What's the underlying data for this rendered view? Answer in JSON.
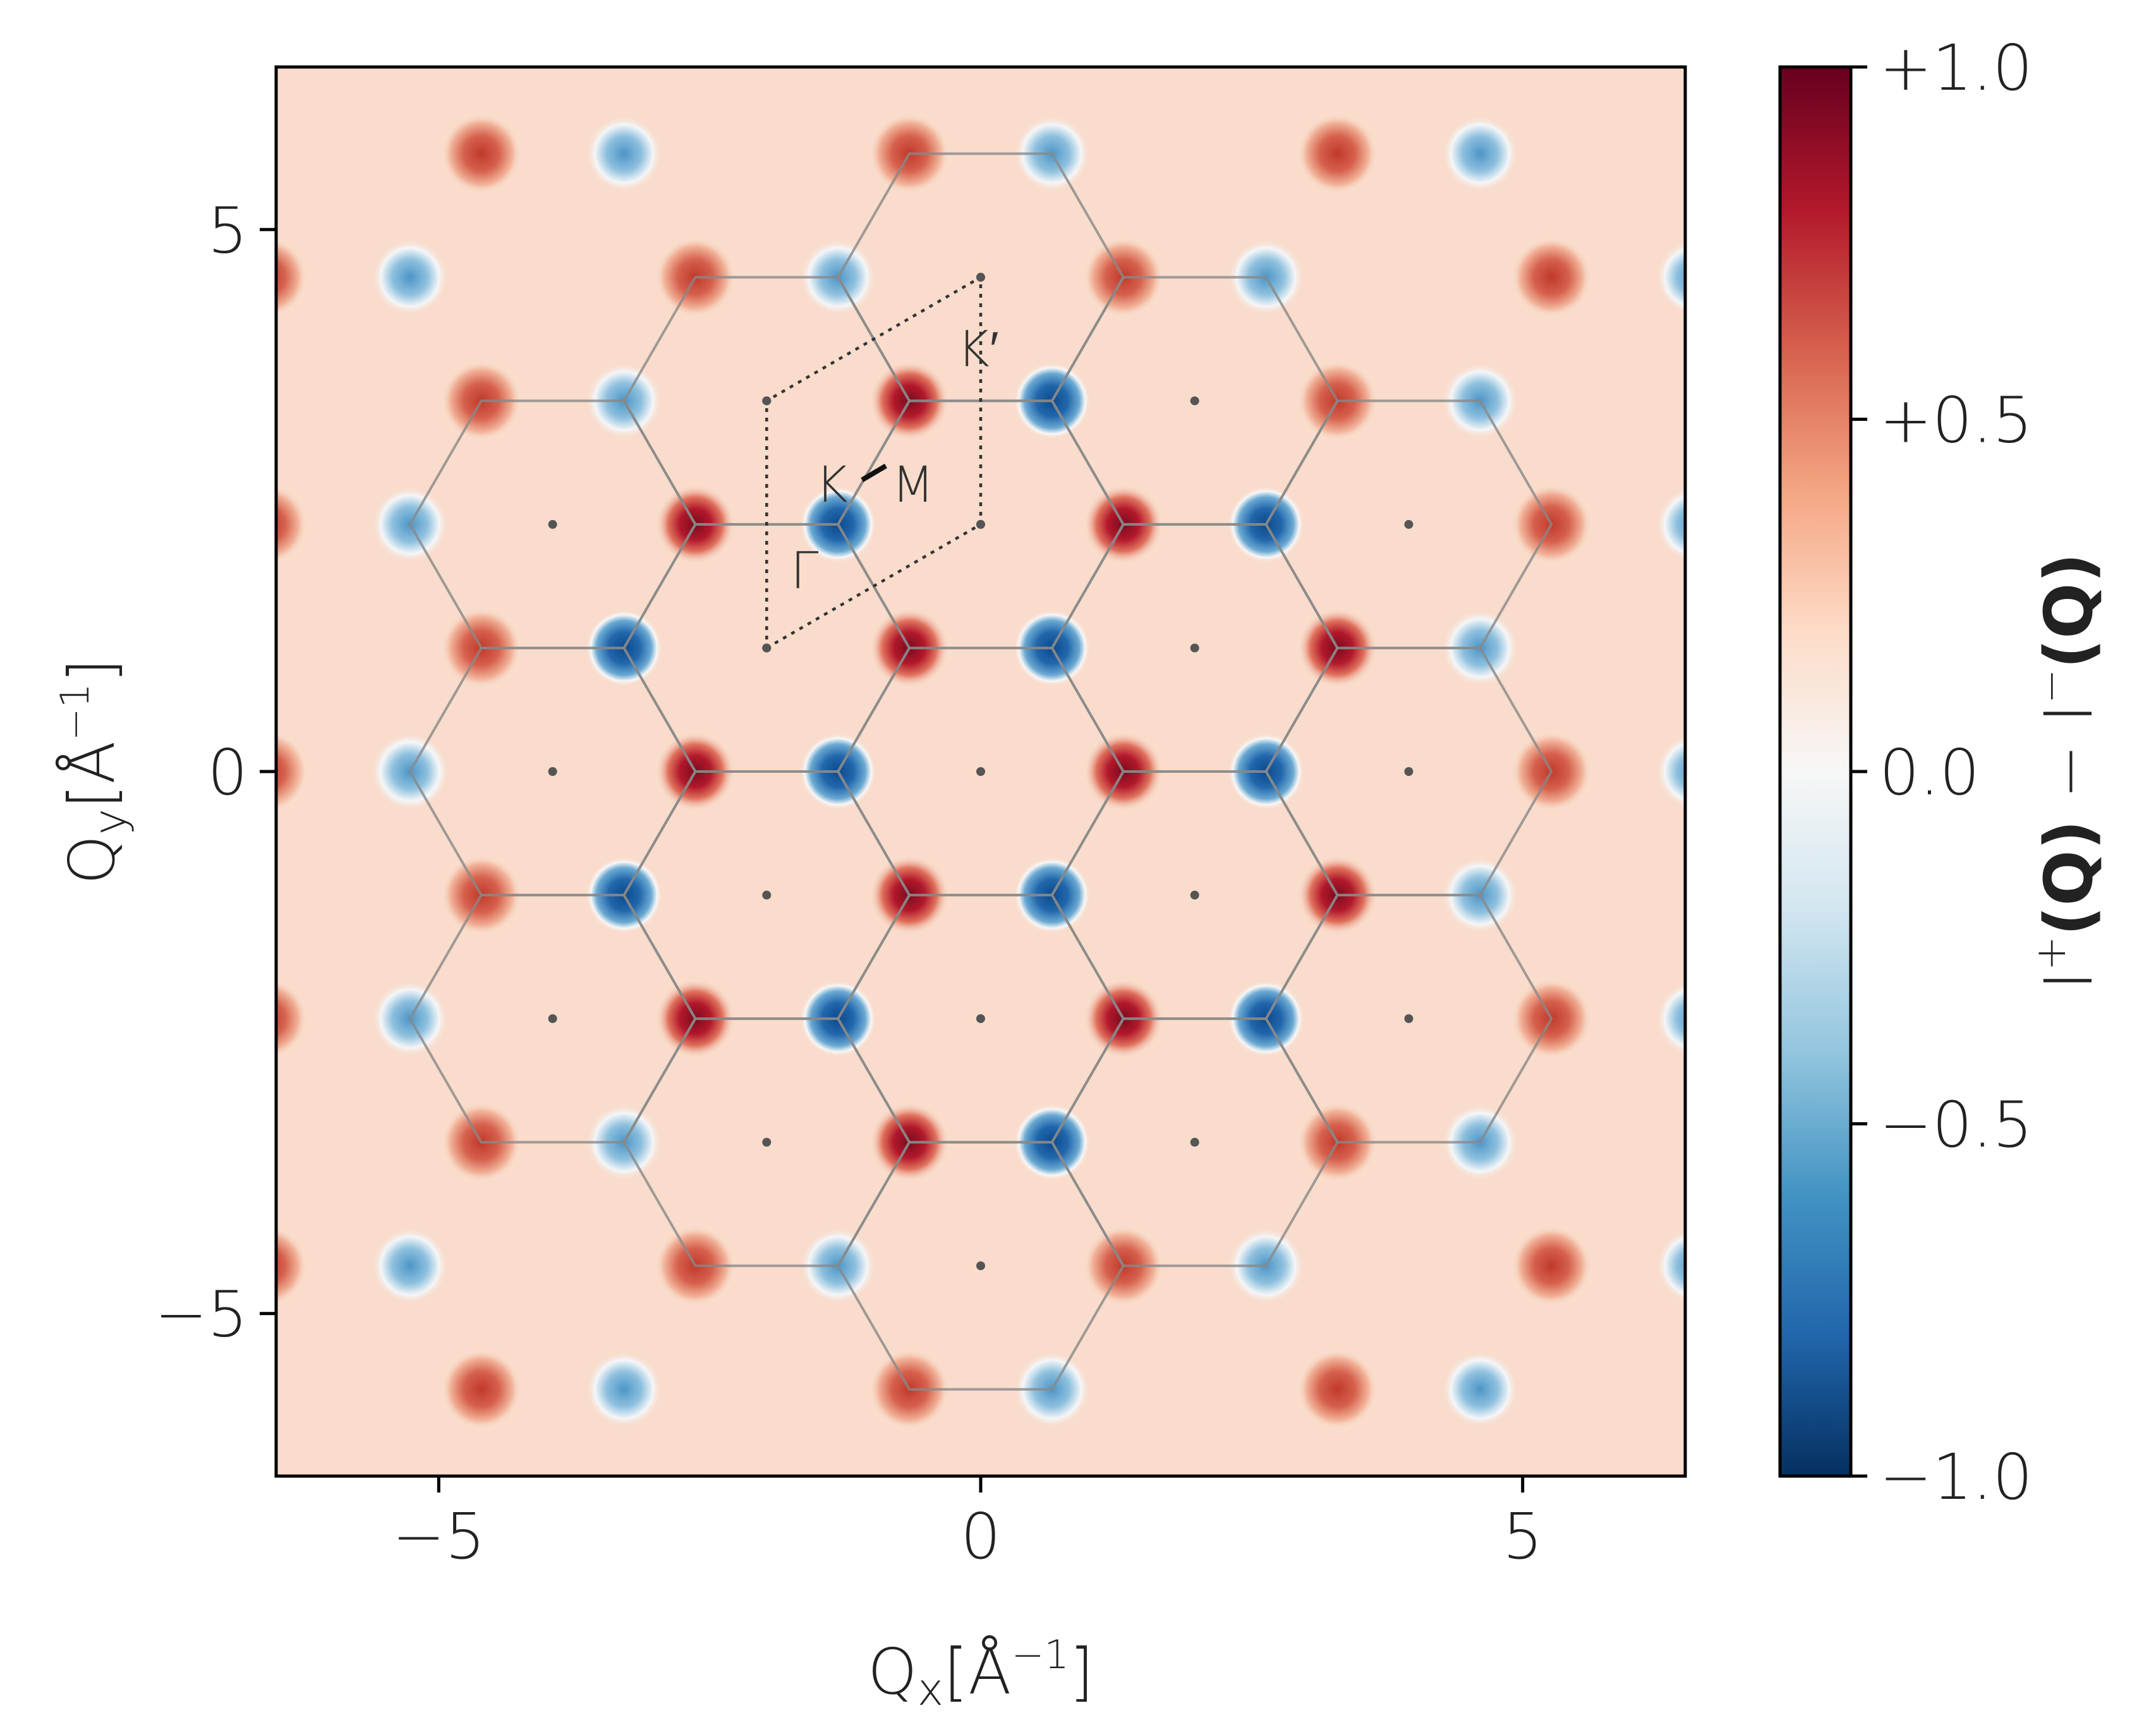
{
  "chart_data": {
    "type": "heatmap",
    "title": "",
    "xlabel": "Q",
    "xlabel_sub": "x",
    "xlabel_unit": "[Å",
    "xlabel_exp": "−1",
    "xlabel_close": "]",
    "ylabel": "Q",
    "ylabel_sub": "y",
    "ylabel_unit": "[Å",
    "ylabel_exp": "−1",
    "ylabel_close": "]",
    "xlim": [
      -6.5,
      6.5
    ],
    "ylim": [
      -6.5,
      6.5
    ],
    "xticks": [
      -5,
      0,
      5
    ],
    "xtick_labels": [
      "−5",
      "0",
      "5"
    ],
    "yticks": [
      -5,
      0,
      5
    ],
    "ytick_labels": [
      "−5",
      "0",
      "5"
    ],
    "background_value": 0.25,
    "lattice_constant_inv": 2.28,
    "hexagon_centers_ij": [
      [
        0,
        0
      ],
      [
        1,
        0
      ],
      [
        -1,
        0
      ],
      [
        0,
        1
      ],
      [
        0,
        -1
      ],
      [
        1,
        -1
      ],
      [
        -1,
        1
      ],
      [
        2,
        -1
      ],
      [
        -2,
        1
      ],
      [
        1,
        1
      ],
      [
        -1,
        -1
      ],
      [
        1,
        -2
      ],
      [
        -1,
        2
      ],
      [
        2,
        0
      ],
      [
        -2,
        0
      ],
      [
        2,
        -2
      ],
      [
        -2,
        2
      ],
      [
        0,
        2
      ],
      [
        0,
        -2
      ]
    ],
    "gamma_points_ij": [
      [
        0,
        0
      ],
      [
        1,
        0
      ],
      [
        -1,
        0
      ],
      [
        0,
        1
      ],
      [
        0,
        -1
      ],
      [
        1,
        -1
      ],
      [
        -1,
        1
      ],
      [
        2,
        -1
      ],
      [
        -2,
        1
      ],
      [
        1,
        1
      ],
      [
        -1,
        -1
      ],
      [
        1,
        -2
      ],
      [
        -1,
        2
      ],
      [
        2,
        0
      ],
      [
        -2,
        0
      ],
      [
        2,
        -2
      ],
      [
        -2,
        2
      ],
      [
        0,
        2
      ],
      [
        0,
        -2
      ]
    ],
    "colorbar": {
      "range": [
        -1.0,
        1.0
      ],
      "ticks": [
        1.0,
        0.5,
        0.0,
        -0.5,
        -1.0
      ],
      "tick_labels": [
        "+1.0",
        "+0.5",
        "0.0",
        "−0.5",
        "−1.0"
      ],
      "label_I1": "I",
      "label_sup1": "+",
      "label_Q1": "(Q)",
      "label_minus": " − ",
      "label_I2": "I",
      "label_sup2": "−",
      "label_Q2": "(Q)",
      "colormap": "RdBu_r"
    },
    "annotations": {
      "gamma": "Γ",
      "K": "K",
      "Kprime": "K′",
      "M": "M"
    },
    "colors": {
      "line": "#888888",
      "point": "#555555",
      "dotted": "#333333",
      "frame": "#000000"
    }
  }
}
